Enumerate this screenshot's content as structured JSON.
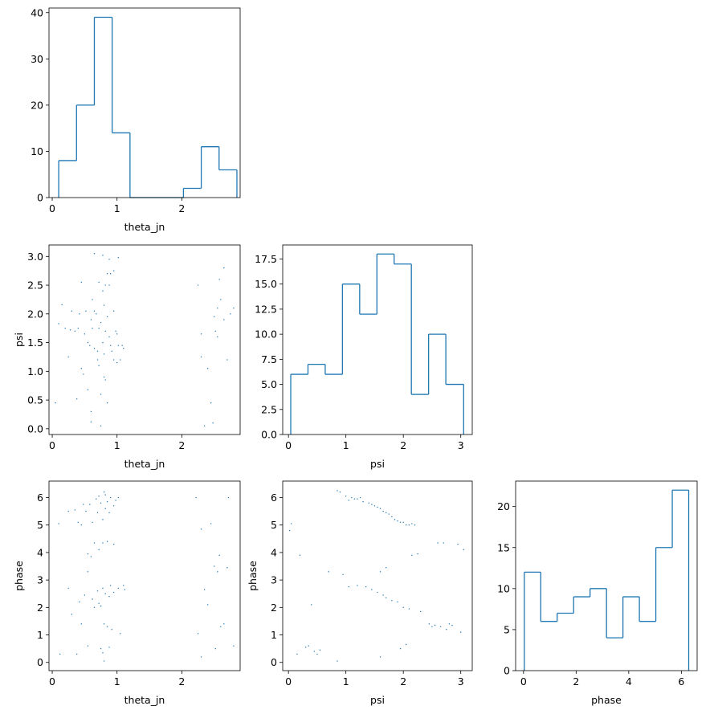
{
  "figure": {
    "type": "corner-plot",
    "color": "#1f77b4"
  },
  "chart_data": [
    {
      "id": "hist_theta_jn",
      "type": "bar",
      "style": "step-histogram",
      "xlabel": "theta_jn",
      "ylabel": "",
      "xlim": [
        -0.05,
        2.9
      ],
      "ylim": [
        0,
        41
      ],
      "xticks": [
        0,
        1,
        2
      ],
      "yticks": [
        0,
        10,
        20,
        30,
        40
      ],
      "bin_edges": [
        0.1,
        0.375,
        0.65,
        0.925,
        1.2,
        1.475,
        1.75,
        2.025,
        2.3,
        2.575,
        2.85
      ],
      "counts": [
        8,
        20,
        39,
        14,
        0,
        0,
        0,
        2,
        11,
        6
      ]
    },
    {
      "id": "scatter_theta_jn_psi",
      "type": "scatter",
      "xlabel": "theta_jn",
      "ylabel": "psi",
      "xlim": [
        -0.05,
        2.9
      ],
      "ylim": [
        -0.1,
        3.2
      ],
      "xticks": [
        0,
        1,
        2
      ],
      "yticks": [
        0.0,
        0.5,
        1.0,
        1.5,
        2.0,
        2.5,
        3.0
      ],
      "ytick_labels": [
        "0.0",
        "0.5",
        "1.0",
        "1.5",
        "2.0",
        "2.5",
        "3.0"
      ],
      "points": [
        [
          0.1,
          1.83
        ],
        [
          0.15,
          2.16
        ],
        [
          0.2,
          1.75
        ],
        [
          0.25,
          1.25
        ],
        [
          0.28,
          1.72
        ],
        [
          0.3,
          2.05
        ],
        [
          0.35,
          1.7
        ],
        [
          0.38,
          0.52
        ],
        [
          0.4,
          1.75
        ],
        [
          0.42,
          2.0
        ],
        [
          0.45,
          2.55
        ],
        [
          0.45,
          1.05
        ],
        [
          0.48,
          0.95
        ],
        [
          0.5,
          1.65
        ],
        [
          0.52,
          2.05
        ],
        [
          0.55,
          1.5
        ],
        [
          0.55,
          0.68
        ],
        [
          0.58,
          1.45
        ],
        [
          0.6,
          0.3
        ],
        [
          0.6,
          0.12
        ],
        [
          0.6,
          1.9
        ],
        [
          0.62,
          2.25
        ],
        [
          0.62,
          1.75
        ],
        [
          0.65,
          3.05
        ],
        [
          0.65,
          2.05
        ],
        [
          0.65,
          1.4
        ],
        [
          0.68,
          2.0
        ],
        [
          0.7,
          1.35
        ],
        [
          0.7,
          1.2
        ],
        [
          0.72,
          2.55
        ],
        [
          0.72,
          1.75
        ],
        [
          0.72,
          1.1
        ],
        [
          0.75,
          0.6
        ],
        [
          0.75,
          1.85
        ],
        [
          0.78,
          3.02
        ],
        [
          0.78,
          2.4
        ],
        [
          0.78,
          1.5
        ],
        [
          0.8,
          2.15
        ],
        [
          0.8,
          1.3
        ],
        [
          0.8,
          0.9
        ],
        [
          0.82,
          2.5
        ],
        [
          0.82,
          1.7
        ],
        [
          0.82,
          0.85
        ],
        [
          0.85,
          2.7
        ],
        [
          0.85,
          1.95
        ],
        [
          0.85,
          0.45
        ],
        [
          0.88,
          2.95
        ],
        [
          0.88,
          2.5
        ],
        [
          0.88,
          1.6
        ],
        [
          0.9,
          2.7
        ],
        [
          0.9,
          1.45
        ],
        [
          0.92,
          1.35
        ],
        [
          0.95,
          2.75
        ],
        [
          0.95,
          2.05
        ],
        [
          0.95,
          1.2
        ],
        [
          0.98,
          1.7
        ],
        [
          1.0,
          1.65
        ],
        [
          1.0,
          1.15
        ],
        [
          1.02,
          2.98
        ],
        [
          1.02,
          1.45
        ],
        [
          1.05,
          1.2
        ],
        [
          1.08,
          1.45
        ],
        [
          1.1,
          1.4
        ],
        [
          0.75,
          0.05
        ],
        [
          0.05,
          0.45
        ],
        [
          2.25,
          2.5
        ],
        [
          2.3,
          1.65
        ],
        [
          2.3,
          1.25
        ],
        [
          2.35,
          0.05
        ],
        [
          2.4,
          1.05
        ],
        [
          2.45,
          0.45
        ],
        [
          2.48,
          0.1
        ],
        [
          2.5,
          1.95
        ],
        [
          2.52,
          1.7
        ],
        [
          2.55,
          2.1
        ],
        [
          2.55,
          1.6
        ],
        [
          2.58,
          2.6
        ],
        [
          2.6,
          2.25
        ],
        [
          2.65,
          2.8
        ],
        [
          2.65,
          1.9
        ],
        [
          2.7,
          1.2
        ],
        [
          2.75,
          2.0
        ],
        [
          2.8,
          2.1
        ]
      ]
    },
    {
      "id": "hist_psi",
      "type": "bar",
      "style": "step-histogram",
      "xlabel": "psi",
      "ylabel": "",
      "xlim": [
        -0.1,
        3.2
      ],
      "ylim": [
        0,
        18.9
      ],
      "xticks": [
        0,
        1,
        2,
        3
      ],
      "yticks": [
        0.0,
        2.5,
        5.0,
        7.5,
        10.0,
        12.5,
        15.0,
        17.5
      ],
      "ytick_labels": [
        "0.0",
        "2.5",
        "5.0",
        "7.5",
        "10.0",
        "12.5",
        "15.0",
        "17.5"
      ],
      "bin_edges": [
        0.04,
        0.34,
        0.64,
        0.94,
        1.24,
        1.54,
        1.84,
        2.14,
        2.44,
        2.74,
        3.05
      ],
      "counts": [
        6,
        7,
        6,
        15,
        12,
        18,
        17,
        4,
        10,
        5
      ]
    },
    {
      "id": "scatter_theta_jn_phase",
      "type": "scatter",
      "xlabel": "theta_jn",
      "ylabel": "phase",
      "xlim": [
        -0.05,
        2.9
      ],
      "ylim": [
        -0.3,
        6.6
      ],
      "xticks": [
        0,
        1,
        2
      ],
      "yticks": [
        0,
        1,
        2,
        3,
        4,
        5,
        6
      ],
      "points": [
        [
          0.1,
          5.05
        ],
        [
          0.12,
          0.3
        ],
        [
          0.25,
          5.5
        ],
        [
          0.25,
          2.7
        ],
        [
          0.3,
          1.75
        ],
        [
          0.35,
          5.55
        ],
        [
          0.38,
          0.3
        ],
        [
          0.4,
          5.1
        ],
        [
          0.42,
          2.2
        ],
        [
          0.45,
          5.0
        ],
        [
          0.45,
          1.4
        ],
        [
          0.48,
          5.75
        ],
        [
          0.5,
          2.45
        ],
        [
          0.52,
          5.5
        ],
        [
          0.55,
          3.95
        ],
        [
          0.55,
          3.3
        ],
        [
          0.55,
          0.6
        ],
        [
          0.58,
          5.75
        ],
        [
          0.6,
          3.85
        ],
        [
          0.62,
          5.1
        ],
        [
          0.62,
          2.3
        ],
        [
          0.65,
          4.35
        ],
        [
          0.65,
          2.0
        ],
        [
          0.68,
          5.95
        ],
        [
          0.7,
          5.45
        ],
        [
          0.7,
          2.6
        ],
        [
          0.72,
          6.05
        ],
        [
          0.72,
          4.1
        ],
        [
          0.72,
          2.15
        ],
        [
          0.75,
          5.8
        ],
        [
          0.75,
          0.5
        ],
        [
          0.75,
          2.05
        ],
        [
          0.78,
          5.2
        ],
        [
          0.78,
          4.35
        ],
        [
          0.78,
          2.7
        ],
        [
          0.78,
          0.35
        ],
        [
          0.8,
          6.2
        ],
        [
          0.8,
          1.4
        ],
        [
          0.8,
          0.05
        ],
        [
          0.82,
          6.1
        ],
        [
          0.82,
          5.6
        ],
        [
          0.82,
          2.5
        ],
        [
          0.85,
          5.85
        ],
        [
          0.85,
          4.4
        ],
        [
          0.85,
          1.3
        ],
        [
          0.88,
          5.45
        ],
        [
          0.88,
          2.4
        ],
        [
          0.88,
          0.55
        ],
        [
          0.9,
          6.0
        ],
        [
          0.9,
          2.8
        ],
        [
          0.92,
          1.2
        ],
        [
          0.95,
          5.7
        ],
        [
          0.95,
          4.3
        ],
        [
          0.95,
          2.55
        ],
        [
          0.98,
          5.9
        ],
        [
          1.02,
          6.0
        ],
        [
          1.02,
          2.7
        ],
        [
          1.05,
          1.05
        ],
        [
          1.1,
          2.8
        ],
        [
          1.12,
          2.65
        ],
        [
          2.22,
          6.0
        ],
        [
          2.25,
          1.05
        ],
        [
          2.3,
          0.2
        ],
        [
          2.3,
          4.85
        ],
        [
          2.35,
          2.65
        ],
        [
          2.4,
          2.1
        ],
        [
          2.45,
          5.05
        ],
        [
          2.5,
          3.5
        ],
        [
          2.52,
          0.5
        ],
        [
          2.55,
          3.3
        ],
        [
          2.58,
          3.9
        ],
        [
          2.6,
          1.3
        ],
        [
          2.65,
          1.4
        ],
        [
          2.7,
          3.45
        ],
        [
          2.72,
          6.0
        ],
        [
          2.8,
          0.6
        ]
      ]
    },
    {
      "id": "scatter_psi_phase",
      "type": "scatter",
      "xlabel": "psi",
      "ylabel": "phase",
      "xlim": [
        -0.1,
        3.2
      ],
      "ylim": [
        -0.3,
        6.6
      ],
      "xticks": [
        0,
        1,
        2,
        3
      ],
      "yticks": [
        0,
        1,
        2,
        3,
        4,
        5,
        6
      ],
      "points": [
        [
          0.02,
          4.8
        ],
        [
          0.05,
          5.05
        ],
        [
          0.15,
          0.3
        ],
        [
          0.2,
          3.9
        ],
        [
          0.3,
          0.55
        ],
        [
          0.35,
          0.6
        ],
        [
          0.4,
          2.1
        ],
        [
          0.45,
          0.4
        ],
        [
          0.5,
          0.3
        ],
        [
          0.55,
          0.45
        ],
        [
          0.7,
          3.3
        ],
        [
          0.85,
          0.05
        ],
        [
          0.85,
          6.25
        ],
        [
          0.9,
          6.2
        ],
        [
          0.95,
          3.2
        ],
        [
          1.0,
          6.05
        ],
        [
          1.05,
          5.9
        ],
        [
          1.05,
          2.75
        ],
        [
          1.1,
          6.0
        ],
        [
          1.15,
          5.95
        ],
        [
          1.2,
          5.95
        ],
        [
          1.2,
          2.8
        ],
        [
          1.25,
          6.0
        ],
        [
          1.3,
          5.85
        ],
        [
          1.35,
          2.75
        ],
        [
          1.4,
          5.8
        ],
        [
          1.45,
          5.75
        ],
        [
          1.45,
          2.65
        ],
        [
          1.5,
          5.7
        ],
        [
          1.55,
          5.65
        ],
        [
          1.55,
          2.55
        ],
        [
          1.6,
          5.6
        ],
        [
          1.6,
          3.3
        ],
        [
          1.65,
          5.5
        ],
        [
          1.65,
          2.45
        ],
        [
          1.7,
          5.45
        ],
        [
          1.7,
          3.45
        ],
        [
          1.7,
          2.35
        ],
        [
          1.75,
          5.4
        ],
        [
          1.8,
          5.3
        ],
        [
          1.8,
          2.25
        ],
        [
          1.85,
          5.2
        ],
        [
          1.9,
          5.15
        ],
        [
          1.9,
          2.2
        ],
        [
          1.95,
          5.1
        ],
        [
          1.95,
          0.5
        ],
        [
          2.0,
          5.1
        ],
        [
          2.0,
          2.0
        ],
        [
          2.05,
          5.0
        ],
        [
          2.05,
          0.65
        ],
        [
          2.1,
          5.0
        ],
        [
          2.1,
          1.95
        ],
        [
          2.15,
          5.05
        ],
        [
          2.15,
          3.9
        ],
        [
          2.2,
          5.0
        ],
        [
          2.25,
          3.95
        ],
        [
          2.3,
          1.85
        ],
        [
          1.6,
          0.2
        ],
        [
          2.45,
          1.4
        ],
        [
          2.5,
          1.3
        ],
        [
          2.55,
          1.35
        ],
        [
          2.6,
          4.35
        ],
        [
          2.65,
          1.3
        ],
        [
          2.7,
          4.35
        ],
        [
          2.75,
          1.2
        ],
        [
          2.8,
          1.4
        ],
        [
          2.85,
          1.35
        ],
        [
          2.95,
          4.3
        ],
        [
          3.0,
          1.1
        ],
        [
          3.05,
          4.1
        ]
      ]
    },
    {
      "id": "hist_phase",
      "type": "bar",
      "style": "step-histogram",
      "xlabel": "phase",
      "ylabel": "",
      "xlim": [
        -0.3,
        6.6
      ],
      "ylim": [
        0,
        23.1
      ],
      "xticks": [
        0,
        2,
        4,
        6
      ],
      "yticks": [
        0,
        5,
        10,
        15,
        20
      ],
      "bin_edges": [
        0.03,
        0.655,
        1.28,
        1.905,
        2.53,
        3.155,
        3.78,
        4.405,
        5.03,
        5.655,
        6.28
      ],
      "counts": [
        12,
        6,
        7,
        9,
        10,
        4,
        9,
        6,
        15,
        22
      ]
    }
  ]
}
